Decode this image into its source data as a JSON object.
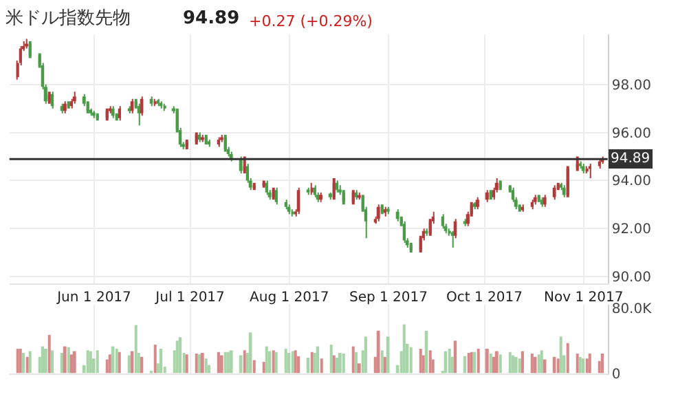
{
  "chart_data": [
    {
      "type": "candlestick",
      "title": "米ドル指数先物",
      "annotations": [
        "94.89",
        "+0.27 (+0.29%)"
      ],
      "colors": [
        "#b03a3a",
        "#b03a3a",
        "#b03a3a",
        "#b03a3a",
        "#4a9a4a",
        "#4a9a4a",
        "#4a9a4a",
        "#4a9a4a",
        "#b03a3a",
        "#4a9a4a",
        "#4a9a4a",
        "#b03a3a",
        "#4a9a4a",
        "#b03a3a",
        "#b03a3a",
        "#4a9a4a",
        "#4a9a4a",
        "#4a9a4a",
        "#4a9a4a",
        "#4a9a4a",
        "#b03a3a",
        "#b03a3a",
        "#4a9a4a",
        "#4a9a4a",
        "#b03a3a",
        "#4a9a4a",
        "#b03a3a",
        "#4a9a4a",
        "#4a9a4a",
        "#b03a3a",
        "#4a9a4a",
        "#b03a3a",
        "#4a9a4a",
        "#4a9a4a",
        "#4a9a4a",
        "#4a9a4a",
        "#4a9a4a",
        "#4a9a4a",
        "#4a9a4a",
        "#b03a3a",
        "#b03a3a",
        "#4a9a4a",
        "#b03a3a",
        "#4a9a4a",
        "#4a9a4a",
        "#b03a3a",
        "#b03a3a",
        "#4a9a4a",
        "#4a9a4a",
        "#4a9a4a",
        "#4a9a4a",
        "#b03a3a",
        "#4a9a4a",
        "#4a9a4a",
        "#b03a3a",
        "#b03a3a",
        "#4a9a4a",
        "#4a9a4a",
        "#b03a3a",
        "#4a9a4a",
        "#4a9a4a",
        "#4a9a4a",
        "#4a9a4a",
        "#b03a3a",
        "#b03a3a",
        "#4a9a4a",
        "#b03a3a",
        "#4a9a4a",
        "#4a9a4a",
        "#b03a3a",
        "#4a9a4a",
        "#b03a3a",
        "#4a9a4a",
        "#4a9a4a",
        "#4a9a4a",
        "#b03a3a",
        "#4a9a4a",
        "#b03a3a",
        "#4a9a4a",
        "#4a9a4a",
        "#b03a3a",
        "#b03a3a",
        "#4a9a4a",
        "#b03a3a",
        "#4a9a4a",
        "#4a9a4a",
        "#4a9a4a",
        "#4a9a4a",
        "#4a9a4a",
        "#4a9a4a",
        "#b03a3a",
        "#b03a3a",
        "#4a9a4a",
        "#b03a3a",
        "#b03a3a",
        "#4a9a4a",
        "#4a9a4a",
        "#4a9a4a",
        "#4a9a4a",
        "#b03a3a",
        "#4a9a4a",
        "#b03a3a",
        "#b03a3a",
        "#4a9a4a",
        "#b03a3a",
        "#b03a3a",
        "#4a9a4a",
        "#b03a3a",
        "#b03a3a",
        "#4a9a4a",
        "#4a9a4a",
        "#4a9a4a",
        "#4a9a4a",
        "#4a9a4a",
        "#b03a3a",
        "#b03a3a",
        "#b03a3a",
        "#4a9a4a",
        "#4a9a4a",
        "#b03a3a",
        "#b03a3a",
        "#b03a3a",
        "#4a9a4a",
        "#4a9a4a",
        "#b03a3a",
        "#b03a3a",
        "#4a9a4a",
        "#4a9a4a",
        "#b03a3a",
        "#b03a3a",
        "#b03a3a",
        "#b03a3a"
      ],
      "x": [
        "2017-05-08",
        "2017-05-09",
        "2017-05-10",
        "2017-05-11",
        "2017-05-12",
        "2017-05-15",
        "2017-05-16",
        "2017-05-17",
        "2017-05-18",
        "2017-05-19",
        "2017-05-22",
        "2017-05-23",
        "2017-05-24",
        "2017-05-25",
        "2017-05-26",
        "2017-05-29",
        "2017-05-30",
        "2017-05-31",
        "2017-06-01",
        "2017-06-02",
        "2017-06-05",
        "2017-06-06",
        "2017-06-07",
        "2017-06-08",
        "2017-06-09",
        "2017-06-12",
        "2017-06-13",
        "2017-06-14",
        "2017-06-15",
        "2017-06-16",
        "2017-06-19",
        "2017-06-20",
        "2017-06-21",
        "2017-06-22",
        "2017-06-23",
        "2017-06-26",
        "2017-06-27",
        "2017-06-28",
        "2017-06-29",
        "2017-06-30",
        "2017-07-03",
        "2017-07-04",
        "2017-07-05",
        "2017-07-06",
        "2017-07-07",
        "2017-07-10",
        "2017-07-11",
        "2017-07-12",
        "2017-07-13",
        "2017-07-14",
        "2017-07-17",
        "2017-07-18",
        "2017-07-19",
        "2017-07-20",
        "2017-07-21",
        "2017-07-24",
        "2017-07-25",
        "2017-07-26",
        "2017-07-27",
        "2017-07-28",
        "2017-07-31",
        "2017-08-01",
        "2017-08-02",
        "2017-08-03",
        "2017-08-04",
        "2017-08-07",
        "2017-08-08",
        "2017-08-09",
        "2017-08-10",
        "2017-08-11",
        "2017-08-14",
        "2017-08-15",
        "2017-08-16",
        "2017-08-17",
        "2017-08-18",
        "2017-08-21",
        "2017-08-22",
        "2017-08-23",
        "2017-08-24",
        "2017-08-25",
        "2017-08-28",
        "2017-08-29",
        "2017-08-30",
        "2017-08-31",
        "2017-09-01",
        "2017-09-04",
        "2017-09-05",
        "2017-09-06",
        "2017-09-07",
        "2017-09-08",
        "2017-09-11",
        "2017-09-12",
        "2017-09-13",
        "2017-09-14",
        "2017-09-15",
        "2017-09-18",
        "2017-09-19",
        "2017-09-20",
        "2017-09-21",
        "2017-09-22",
        "2017-09-25",
        "2017-09-26",
        "2017-09-27",
        "2017-09-28",
        "2017-09-29",
        "2017-10-02",
        "2017-10-03",
        "2017-10-04",
        "2017-10-05",
        "2017-10-06",
        "2017-10-09",
        "2017-10-10",
        "2017-10-11",
        "2017-10-12",
        "2017-10-13",
        "2017-10-16",
        "2017-10-17",
        "2017-10-18",
        "2017-10-19",
        "2017-10-20",
        "2017-10-23",
        "2017-10-24",
        "2017-10-25",
        "2017-10-26",
        "2017-10-27",
        "2017-10-30",
        "2017-10-31",
        "2017-11-01",
        "2017-11-02",
        "2017-11-03",
        "2017-11-06",
        "2017-11-07"
      ],
      "ohlc": [
        [
          98.3,
          99.0,
          98.2,
          98.9
        ],
        [
          98.9,
          99.6,
          98.8,
          99.5
        ],
        [
          99.5,
          99.8,
          99.4,
          99.6
        ],
        [
          99.6,
          99.9,
          99.5,
          99.7
        ],
        [
          99.7,
          99.8,
          99.1,
          99.2
        ],
        [
          99.2,
          99.3,
          98.7,
          98.8
        ],
        [
          98.8,
          98.9,
          97.8,
          97.9
        ],
        [
          97.9,
          98.0,
          97.2,
          97.3
        ],
        [
          97.3,
          97.7,
          97.2,
          97.6
        ],
        [
          97.6,
          97.7,
          97.0,
          97.1
        ],
        [
          97.1,
          97.2,
          96.8,
          96.9
        ],
        [
          96.9,
          97.3,
          96.8,
          97.2
        ],
        [
          97.2,
          97.3,
          97.0,
          97.1
        ],
        [
          97.1,
          97.4,
          97.0,
          97.3
        ],
        [
          97.3,
          97.7,
          97.2,
          97.5
        ],
        [
          97.5,
          97.6,
          97.1,
          97.2
        ],
        [
          97.2,
          97.3,
          96.8,
          96.9
        ],
        [
          96.9,
          97.0,
          96.7,
          96.8
        ],
        [
          96.8,
          96.9,
          96.6,
          96.7
        ],
        [
          96.7,
          96.8,
          96.5,
          96.6
        ],
        [
          96.6,
          97.0,
          96.5,
          96.9
        ],
        [
          96.9,
          97.1,
          96.8,
          97.0
        ],
        [
          97.0,
          97.1,
          96.6,
          96.7
        ],
        [
          96.7,
          96.8,
          96.5,
          96.6
        ],
        [
          96.6,
          97.1,
          96.5,
          97.0
        ],
        [
          97.0,
          97.1,
          96.8,
          96.9
        ],
        [
          96.9,
          97.4,
          96.8,
          97.3
        ],
        [
          97.3,
          97.4,
          97.0,
          97.1
        ],
        [
          97.1,
          97.2,
          96.3,
          96.8
        ],
        [
          96.8,
          97.5,
          96.7,
          97.4
        ],
        [
          97.4,
          97.5,
          97.1,
          97.2
        ],
        [
          97.2,
          97.4,
          97.1,
          97.3
        ],
        [
          97.3,
          97.4,
          97.1,
          97.2
        ],
        [
          97.2,
          97.3,
          97.0,
          97.1
        ],
        [
          97.1,
          97.2,
          96.9,
          97.0
        ],
        [
          97.0,
          97.1,
          96.8,
          96.9
        ],
        [
          96.9,
          97.0,
          96.0,
          96.1
        ],
        [
          96.1,
          96.2,
          95.4,
          95.5
        ],
        [
          95.5,
          95.6,
          95.3,
          95.4
        ],
        [
          95.4,
          95.7,
          95.3,
          95.6
        ],
        [
          95.6,
          96.0,
          95.5,
          95.9
        ],
        [
          95.9,
          96.0,
          95.6,
          95.7
        ],
        [
          95.7,
          95.9,
          95.6,
          95.8
        ],
        [
          95.8,
          95.9,
          95.5,
          95.6
        ],
        [
          95.6,
          95.7,
          95.4,
          95.5
        ],
        [
          95.5,
          95.8,
          95.4,
          95.7
        ],
        [
          95.7,
          95.9,
          95.6,
          95.8
        ],
        [
          95.8,
          95.9,
          95.2,
          95.3
        ],
        [
          95.3,
          95.4,
          95.0,
          95.1
        ],
        [
          95.1,
          95.2,
          94.8,
          94.9
        ],
        [
          94.9,
          95.0,
          94.3,
          94.4
        ],
        [
          94.4,
          95.0,
          94.3,
          94.6
        ],
        [
          94.6,
          94.7,
          93.9,
          94.0
        ],
        [
          94.0,
          94.1,
          93.6,
          93.7
        ],
        [
          93.7,
          93.9,
          93.6,
          93.8
        ],
        [
          93.8,
          94.0,
          93.7,
          93.9
        ],
        [
          93.9,
          94.0,
          93.4,
          93.5
        ],
        [
          93.5,
          93.6,
          93.2,
          93.3
        ],
        [
          93.3,
          93.7,
          93.2,
          93.6
        ],
        [
          93.6,
          93.7,
          93.0,
          93.1
        ],
        [
          93.1,
          93.2,
          92.8,
          92.9
        ],
        [
          92.9,
          93.0,
          92.6,
          92.7
        ],
        [
          92.7,
          92.8,
          92.5,
          92.6
        ],
        [
          92.6,
          92.8,
          92.5,
          92.7
        ],
        [
          92.7,
          93.7,
          92.6,
          93.6
        ],
        [
          93.6,
          93.7,
          93.4,
          93.5
        ],
        [
          93.5,
          93.9,
          93.4,
          93.7
        ],
        [
          93.7,
          93.8,
          93.3,
          93.4
        ],
        [
          93.4,
          93.5,
          93.1,
          93.2
        ],
        [
          93.2,
          93.5,
          93.1,
          93.4
        ],
        [
          93.4,
          93.5,
          93.2,
          93.3
        ],
        [
          93.3,
          94.1,
          93.2,
          93.9
        ],
        [
          93.9,
          94.0,
          93.5,
          93.6
        ],
        [
          93.6,
          93.8,
          93.4,
          93.5
        ],
        [
          93.5,
          93.6,
          93.0,
          93.1
        ],
        [
          93.1,
          93.6,
          93.0,
          93.5
        ],
        [
          93.5,
          93.6,
          93.2,
          93.3
        ],
        [
          93.3,
          93.5,
          93.2,
          93.35
        ],
        [
          93.35,
          93.4,
          92.7,
          92.8
        ],
        [
          92.8,
          92.9,
          91.6,
          92.3
        ],
        [
          92.3,
          92.5,
          92.2,
          92.4
        ],
        [
          92.4,
          93.0,
          92.3,
          92.9
        ],
        [
          92.9,
          93.0,
          92.6,
          92.7
        ],
        [
          92.7,
          92.9,
          92.5,
          92.8
        ],
        [
          92.8,
          92.9,
          92.6,
          92.7
        ],
        [
          92.7,
          92.8,
          92.3,
          92.4
        ],
        [
          92.4,
          92.5,
          92.1,
          92.2
        ],
        [
          92.2,
          92.3,
          91.4,
          91.5
        ],
        [
          91.5,
          91.6,
          91.2,
          91.3
        ],
        [
          91.3,
          91.4,
          91.0,
          91.1
        ],
        [
          91.1,
          91.7,
          91.0,
          91.6
        ],
        [
          91.6,
          92.0,
          91.5,
          91.9
        ],
        [
          91.9,
          92.0,
          91.7,
          91.8
        ],
        [
          91.8,
          92.4,
          91.7,
          92.3
        ],
        [
          92.3,
          92.7,
          92.2,
          92.5
        ],
        [
          92.5,
          92.6,
          92.0,
          92.1
        ],
        [
          92.1,
          92.2,
          91.8,
          91.9
        ],
        [
          91.9,
          92.0,
          91.7,
          91.8
        ],
        [
          91.8,
          91.9,
          91.2,
          91.7
        ],
        [
          91.7,
          92.4,
          91.6,
          92.3
        ],
        [
          92.3,
          92.4,
          92.1,
          92.2
        ],
        [
          92.2,
          92.7,
          92.1,
          92.6
        ],
        [
          92.6,
          93.1,
          92.5,
          93.0
        ],
        [
          93.0,
          93.1,
          92.8,
          92.9
        ],
        [
          92.9,
          93.3,
          92.8,
          93.2
        ],
        [
          93.2,
          93.6,
          93.1,
          93.5
        ],
        [
          93.5,
          93.6,
          93.2,
          93.3
        ],
        [
          93.3,
          93.7,
          93.2,
          93.6
        ],
        [
          93.6,
          94.1,
          93.5,
          93.9
        ],
        [
          93.9,
          94.0,
          93.6,
          93.7
        ],
        [
          93.7,
          93.8,
          93.5,
          93.6
        ],
        [
          93.6,
          93.7,
          93.1,
          93.2
        ],
        [
          93.2,
          93.3,
          92.8,
          92.9
        ],
        [
          92.9,
          93.0,
          92.7,
          92.8
        ],
        [
          92.8,
          93.0,
          92.7,
          92.9
        ],
        [
          92.9,
          93.2,
          92.8,
          93.1
        ],
        [
          93.1,
          93.4,
          93.0,
          93.3
        ],
        [
          93.3,
          93.4,
          93.1,
          93.2
        ],
        [
          93.2,
          93.3,
          92.9,
          93.0
        ],
        [
          93.0,
          93.4,
          92.9,
          93.3
        ],
        [
          93.3,
          93.8,
          93.2,
          93.7
        ],
        [
          93.7,
          93.9,
          93.6,
          93.8
        ],
        [
          93.8,
          93.9,
          93.6,
          93.7
        ],
        [
          93.7,
          93.8,
          93.3,
          93.4
        ],
        [
          93.4,
          94.6,
          93.3,
          94.5
        ],
        [
          94.5,
          95.0,
          94.4,
          94.7
        ],
        [
          94.7,
          94.8,
          94.5,
          94.6
        ],
        [
          94.6,
          94.7,
          94.3,
          94.4
        ],
        [
          94.4,
          94.6,
          94.3,
          94.5
        ],
        [
          94.5,
          94.7,
          94.1,
          94.6
        ],
        [
          94.6,
          94.9,
          94.5,
          94.8
        ],
        [
          94.8,
          95.0,
          94.7,
          94.89
        ]
      ],
      "xlim": [
        "2017-05-05T12:00",
        "2017-11-08T12:00"
      ],
      "xticks": [
        {
          "value": "2017-06-01",
          "label": "Jun 1 2017"
        },
        {
          "value": "2017-07-01",
          "label": "Jul 1 2017"
        },
        {
          "value": "2017-08-01",
          "label": "Aug 1 2017"
        },
        {
          "value": "2017-09-01",
          "label": "Sep 1 2017"
        },
        {
          "value": "2017-10-01",
          "label": "Oct 1 2017"
        },
        {
          "value": "2017-11-01",
          "label": "Nov 1 2017"
        }
      ],
      "ylim": [
        89.7,
        100.1
      ],
      "yticks": [
        {
          "value": 90,
          "label": "90.00"
        },
        {
          "value": 92,
          "label": "92.00"
        },
        {
          "value": 94,
          "label": "94.00"
        },
        {
          "value": 96,
          "label": "96.00"
        },
        {
          "value": 98,
          "label": "98.00"
        }
      ],
      "grid": true,
      "ref_lines": [
        {
          "axis": "y",
          "value": 94.89,
          "label": "94.89",
          "color": "#333333"
        }
      ]
    },
    {
      "type": "bar",
      "x": [
        "2017-05-08",
        "2017-05-09",
        "2017-05-10",
        "2017-05-11",
        "2017-05-12",
        "2017-05-15",
        "2017-05-16",
        "2017-05-17",
        "2017-05-18",
        "2017-05-19",
        "2017-05-22",
        "2017-05-23",
        "2017-05-24",
        "2017-05-25",
        "2017-05-26",
        "2017-05-29",
        "2017-05-30",
        "2017-05-31",
        "2017-06-01",
        "2017-06-02",
        "2017-06-05",
        "2017-06-06",
        "2017-06-07",
        "2017-06-08",
        "2017-06-09",
        "2017-06-12",
        "2017-06-13",
        "2017-06-14",
        "2017-06-15",
        "2017-06-16",
        "2017-06-19",
        "2017-06-20",
        "2017-06-21",
        "2017-06-22",
        "2017-06-23",
        "2017-06-26",
        "2017-06-27",
        "2017-06-28",
        "2017-06-29",
        "2017-06-30",
        "2017-07-03",
        "2017-07-04",
        "2017-07-05",
        "2017-07-06",
        "2017-07-07",
        "2017-07-10",
        "2017-07-11",
        "2017-07-12",
        "2017-07-13",
        "2017-07-14",
        "2017-07-17",
        "2017-07-18",
        "2017-07-19",
        "2017-07-20",
        "2017-07-21",
        "2017-07-24",
        "2017-07-25",
        "2017-07-26",
        "2017-07-27",
        "2017-07-28",
        "2017-07-31",
        "2017-08-01",
        "2017-08-02",
        "2017-08-03",
        "2017-08-04",
        "2017-08-07",
        "2017-08-08",
        "2017-08-09",
        "2017-08-10",
        "2017-08-11",
        "2017-08-14",
        "2017-08-15",
        "2017-08-16",
        "2017-08-17",
        "2017-08-18",
        "2017-08-21",
        "2017-08-22",
        "2017-08-23",
        "2017-08-24",
        "2017-08-25",
        "2017-08-28",
        "2017-08-29",
        "2017-08-30",
        "2017-08-31",
        "2017-09-01",
        "2017-09-04",
        "2017-09-05",
        "2017-09-06",
        "2017-09-07",
        "2017-09-08",
        "2017-09-11",
        "2017-09-12",
        "2017-09-13",
        "2017-09-14",
        "2017-09-15",
        "2017-09-18",
        "2017-09-19",
        "2017-09-20",
        "2017-09-21",
        "2017-09-22",
        "2017-09-25",
        "2017-09-26",
        "2017-09-27",
        "2017-09-28",
        "2017-09-29",
        "2017-10-02",
        "2017-10-03",
        "2017-10-04",
        "2017-10-05",
        "2017-10-06",
        "2017-10-09",
        "2017-10-10",
        "2017-10-11",
        "2017-10-12",
        "2017-10-13",
        "2017-10-16",
        "2017-10-17",
        "2017-10-18",
        "2017-10-19",
        "2017-10-20",
        "2017-10-23",
        "2017-10-24",
        "2017-10-25",
        "2017-10-26",
        "2017-10-27",
        "2017-10-30",
        "2017-10-31",
        "2017-11-01",
        "2017-11-02",
        "2017-11-03",
        "2017-11-06",
        "2017-11-07"
      ],
      "values": [
        30000,
        30000,
        25000,
        20000,
        27000,
        20000,
        33000,
        30000,
        47000,
        28000,
        25000,
        33000,
        32000,
        23000,
        27000,
        10000,
        28000,
        27000,
        18000,
        28000,
        17000,
        23000,
        33000,
        30000,
        26000,
        22000,
        27000,
        59000,
        25000,
        20000,
        2000,
        35000,
        12000,
        30000,
        8000,
        28000,
        40000,
        44000,
        25000,
        23000,
        24000,
        23000,
        25000,
        18000,
        10000,
        26000,
        22000,
        26000,
        26000,
        28000,
        22000,
        28000,
        25000,
        50000,
        16000,
        14000,
        33000,
        27000,
        28000,
        26000,
        30000,
        25000,
        27000,
        28000,
        21000,
        19000,
        26000,
        25000,
        33000,
        18000,
        35000,
        22000,
        19000,
        25000,
        24000,
        33000,
        26000,
        12000,
        28000,
        45000,
        20000,
        52000,
        28000,
        20000,
        45000,
        10000,
        27000,
        60000,
        36000,
        32000,
        30000,
        22000,
        52000,
        28000,
        17000,
        3000,
        27000,
        30000,
        20000,
        40000,
        21000,
        25000,
        26000,
        26000,
        30000,
        30000,
        24000,
        20000,
        27000,
        23000,
        26000,
        22000,
        20000,
        18000,
        27000,
        24000,
        20000,
        23000,
        28000,
        17000,
        20000,
        18000,
        45000,
        22000,
        37000,
        24000,
        20000,
        18000,
        18000,
        24000,
        15000,
        24000
      ],
      "colors": [
        "#d48a8a",
        "#d48a8a",
        "#a9d3a9",
        "#d48a8a",
        "#a9d3a9",
        "#a9d3a9",
        "#a9d3a9",
        "#a9d3a9",
        "#d48a8a",
        "#a9d3a9",
        "#a9d3a9",
        "#d48a8a",
        "#a9d3a9",
        "#d48a8a",
        "#d48a8a",
        "#a9d3a9",
        "#a9d3a9",
        "#a9d3a9",
        "#a9d3a9",
        "#a9d3a9",
        "#d48a8a",
        "#d48a8a",
        "#a9d3a9",
        "#a9d3a9",
        "#d48a8a",
        "#a9d3a9",
        "#d48a8a",
        "#a9d3a9",
        "#a9d3a9",
        "#d48a8a",
        "#a9d3a9",
        "#d48a8a",
        "#a9d3a9",
        "#a9d3a9",
        "#a9d3a9",
        "#a9d3a9",
        "#a9d3a9",
        "#a9d3a9",
        "#a9d3a9",
        "#d48a8a",
        "#d48a8a",
        "#a9d3a9",
        "#d48a8a",
        "#a9d3a9",
        "#a9d3a9",
        "#d48a8a",
        "#d48a8a",
        "#a9d3a9",
        "#a9d3a9",
        "#a9d3a9",
        "#a9d3a9",
        "#d48a8a",
        "#a9d3a9",
        "#a9d3a9",
        "#d48a8a",
        "#d48a8a",
        "#a9d3a9",
        "#a9d3a9",
        "#d48a8a",
        "#a9d3a9",
        "#a9d3a9",
        "#a9d3a9",
        "#a9d3a9",
        "#d48a8a",
        "#d48a8a",
        "#a9d3a9",
        "#d48a8a",
        "#a9d3a9",
        "#a9d3a9",
        "#d48a8a",
        "#a9d3a9",
        "#d48a8a",
        "#a9d3a9",
        "#a9d3a9",
        "#a9d3a9",
        "#d48a8a",
        "#a9d3a9",
        "#d48a8a",
        "#a9d3a9",
        "#a9d3a9",
        "#d48a8a",
        "#d48a8a",
        "#a9d3a9",
        "#d48a8a",
        "#a9d3a9",
        "#a9d3a9",
        "#a9d3a9",
        "#a9d3a9",
        "#a9d3a9",
        "#a9d3a9",
        "#d48a8a",
        "#d48a8a",
        "#a9d3a9",
        "#d48a8a",
        "#d48a8a",
        "#a9d3a9",
        "#a9d3a9",
        "#a9d3a9",
        "#a9d3a9",
        "#d48a8a",
        "#a9d3a9",
        "#d48a8a",
        "#d48a8a",
        "#a9d3a9",
        "#d48a8a",
        "#d48a8a",
        "#a9d3a9",
        "#d48a8a",
        "#d48a8a",
        "#a9d3a9",
        "#a9d3a9",
        "#a9d3a9",
        "#a9d3a9",
        "#a9d3a9",
        "#d48a8a",
        "#d48a8a",
        "#d48a8a",
        "#a9d3a9",
        "#a9d3a9",
        "#d48a8a",
        "#d48a8a",
        "#d48a8a",
        "#a9d3a9",
        "#a9d3a9",
        "#d48a8a",
        "#d48a8a",
        "#a9d3a9",
        "#a9d3a9",
        "#d48a8a",
        "#d48a8a",
        "#d48a8a",
        "#d48a8a"
      ],
      "xlim": [
        "2017-05-05T12:00",
        "2017-11-08T12:00"
      ],
      "xticks": [
        {
          "value": "2017-06-01",
          "label": null
        },
        {
          "value": "2017-07-01",
          "label": null
        },
        {
          "value": "2017-08-01",
          "label": null
        },
        {
          "value": "2017-09-01",
          "label": null
        },
        {
          "value": "2017-10-01",
          "label": null
        },
        {
          "value": "2017-11-01",
          "label": null
        }
      ],
      "ylim": [
        0,
        84000
      ],
      "yticks": [
        0,
        {
          "value": 80000,
          "label": "80.0K"
        }
      ],
      "tick_labels": "y",
      "grid": "x"
    }
  ]
}
